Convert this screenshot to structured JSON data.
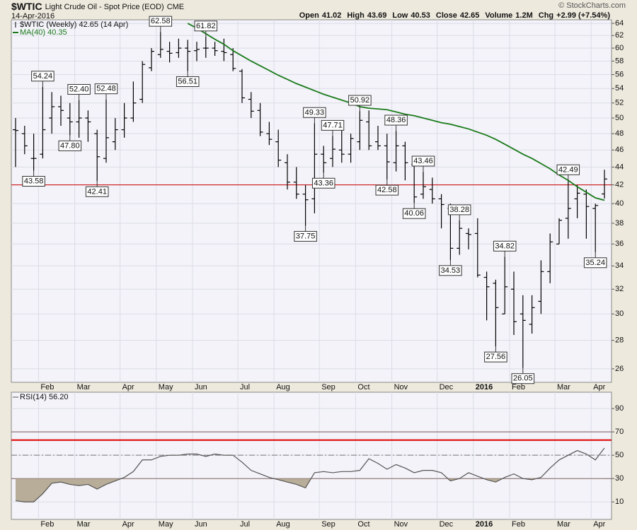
{
  "header": {
    "symbol": "$WTIC",
    "name": "Light Crude Oil - Spot Price (EOD)",
    "exchange": "CME",
    "date": "14-Apr-2016",
    "credit": "© StockCharts.com",
    "quote": [
      {
        "label": "Open",
        "value": "41.02"
      },
      {
        "label": "High",
        "value": "43.69"
      },
      {
        "label": "Low",
        "value": "40.53"
      },
      {
        "label": "Close",
        "value": "42.65"
      },
      {
        "label": "Volume",
        "value": "1.2M"
      },
      {
        "label": "Chg",
        "value": "+2.99 (+7.54%)"
      }
    ]
  },
  "chart_data": [
    {
      "type": "ohlc",
      "legend_label": "$WTIC (Weekly) 42.65 (14 Apr)",
      "log_scale": true,
      "grid": true,
      "bar_color": "#000000",
      "categories": [
        null,
        null,
        null,
        "Feb",
        null,
        null,
        null,
        "Mar",
        null,
        null,
        null,
        null,
        "Apr",
        null,
        null,
        null,
        "May",
        null,
        null,
        null,
        "Jun",
        null,
        null,
        null,
        null,
        "Jul",
        null,
        null,
        null,
        "Aug",
        null,
        null,
        null,
        null,
        "Sep",
        null,
        null,
        null,
        "Oct",
        null,
        null,
        null,
        "Nov",
        null,
        null,
        null,
        null,
        "Dec",
        null,
        null,
        null,
        "2016",
        null,
        null,
        null,
        "Feb",
        null,
        null,
        null,
        null,
        "Mar",
        null,
        null,
        null,
        "Apr",
        null
      ],
      "open": [
        48.5,
        48.0,
        45.0,
        45.5,
        50.0,
        51.5,
        50.0,
        49.5,
        50.0,
        48.0,
        45.0,
        47.0,
        48.5,
        50.0,
        52.5,
        57.0,
        59.0,
        59.5,
        59.3,
        60.0,
        59.6,
        60.0,
        60.0,
        59.5,
        59.0,
        56.5,
        52.5,
        51.0,
        48.0,
        47.0,
        44.5,
        42.3,
        41.0,
        40.5,
        45.5,
        45.0,
        46.0,
        45.5,
        47.0,
        49.5,
        47.0,
        46.5,
        44.5,
        46.5,
        44.3,
        41.0,
        41.5,
        40.5,
        39.5,
        35.6,
        37.0,
        37.0,
        33.0,
        32.5,
        30.0,
        32.0,
        30.0,
        29.2,
        31.0,
        33.5,
        36.0,
        38.5,
        40.5,
        41.0,
        39.5,
        41.02
      ],
      "high": [
        50.0,
        49.0,
        48.0,
        54.24,
        53.5,
        53.0,
        52.0,
        52.4,
        51.0,
        48.5,
        52.48,
        50.0,
        52.0,
        55.0,
        58.0,
        60.0,
        62.58,
        61.0,
        61.5,
        61.3,
        61.0,
        61.82,
        61.0,
        61.5,
        60.0,
        56.8,
        53.5,
        52.0,
        49.5,
        48.5,
        45.5,
        44.0,
        42.0,
        49.33,
        46.5,
        47.71,
        48.5,
        48.0,
        50.92,
        51.0,
        49.0,
        48.0,
        48.36,
        47.0,
        44.5,
        43.46,
        42.8,
        41.0,
        40.0,
        38.28,
        37.5,
        38.5,
        33.5,
        32.8,
        34.82,
        33.5,
        31.5,
        31.5,
        34.5,
        37.0,
        38.5,
        42.49,
        42.0,
        41.5,
        40.0,
        43.69
      ],
      "low": [
        44.0,
        45.5,
        43.58,
        45.0,
        48.0,
        49.0,
        47.8,
        47.5,
        47.0,
        42.41,
        44.5,
        46.0,
        47.5,
        49.5,
        52.0,
        56.5,
        58.5,
        57.8,
        58.5,
        56.51,
        58.0,
        58.5,
        58.8,
        58.0,
        56.5,
        52.0,
        50.0,
        47.7,
        46.6,
        44.0,
        41.5,
        40.5,
        37.75,
        39.0,
        43.36,
        44.0,
        44.5,
        44.5,
        46.0,
        46.0,
        46.0,
        42.58,
        43.5,
        42.5,
        40.06,
        40.5,
        40.0,
        37.5,
        34.53,
        35.0,
        35.5,
        33.0,
        29.5,
        27.56,
        30.0,
        28.4,
        26.05,
        28.5,
        30.0,
        32.5,
        36.0,
        36.5,
        38.5,
        36.5,
        35.24,
        40.53
      ],
      "close": [
        48.4,
        46.5,
        45.0,
        48.5,
        51.5,
        51.0,
        49.5,
        50.0,
        49.5,
        45.2,
        47.5,
        48.5,
        50.0,
        52.0,
        57.5,
        59.5,
        59.8,
        59.2,
        60.0,
        59.5,
        59.8,
        60.0,
        59.6,
        59.3,
        56.9,
        52.7,
        50.9,
        48.2,
        47.3,
        44.8,
        42.3,
        41.0,
        40.4,
        45.5,
        44.5,
        46.1,
        45.5,
        47.4,
        49.7,
        46.5,
        46.5,
        44.6,
        46.5,
        44.5,
        40.7,
        41.8,
        40.5,
        39.9,
        35.6,
        37.5,
        36.9,
        33.2,
        32.2,
        30.5,
        32.2,
        29.4,
        29.5,
        30.5,
        33.5,
        36.2,
        38.3,
        39.5,
        41.1,
        39.7,
        39.8,
        42.65
      ],
      "high_labels": [
        null,
        null,
        null,
        "54.24",
        null,
        null,
        null,
        "52.40",
        null,
        null,
        "52.48",
        null,
        null,
        null,
        null,
        null,
        "62.58",
        null,
        null,
        null,
        null,
        "61.82",
        null,
        null,
        null,
        null,
        null,
        null,
        null,
        null,
        null,
        null,
        null,
        "49.33",
        null,
        "47.71",
        null,
        null,
        "50.92",
        null,
        null,
        null,
        "48.36",
        null,
        null,
        "43.46",
        null,
        null,
        null,
        "38.28",
        null,
        null,
        null,
        null,
        "34.82",
        null,
        null,
        null,
        null,
        null,
        null,
        "42.49",
        null,
        null,
        null,
        null
      ],
      "low_labels": [
        null,
        null,
        "43.58",
        null,
        null,
        null,
        "47.80",
        null,
        null,
        "42.41",
        null,
        null,
        null,
        null,
        null,
        null,
        null,
        null,
        null,
        "56.51",
        null,
        null,
        null,
        null,
        null,
        null,
        null,
        null,
        null,
        null,
        null,
        null,
        "37.75",
        null,
        "43.36",
        null,
        null,
        null,
        null,
        null,
        null,
        "42.58",
        null,
        null,
        "40.06",
        null,
        null,
        null,
        "34.53",
        null,
        null,
        null,
        null,
        "27.56",
        null,
        null,
        "26.05",
        null,
        null,
        null,
        null,
        null,
        null,
        null,
        "35.24",
        null
      ],
      "series": [
        {
          "name": "MA(40) 40.35",
          "color": "#1a7a1a",
          "values": [
            null,
            null,
            null,
            null,
            null,
            null,
            null,
            null,
            null,
            null,
            null,
            null,
            null,
            null,
            null,
            null,
            null,
            null,
            null,
            64.0,
            63.2,
            62.3,
            61.4,
            60.6,
            59.6,
            58.8,
            58.0,
            57.3,
            56.6,
            55.9,
            55.3,
            54.7,
            54.2,
            53.7,
            53.2,
            52.8,
            52.4,
            52.0,
            51.5,
            51.3,
            51.2,
            51.1,
            50.8,
            50.5,
            50.3,
            50.0,
            49.7,
            49.4,
            49.2,
            48.9,
            48.6,
            48.2,
            47.8,
            47.3,
            46.7,
            46.1,
            45.5,
            45.0,
            44.4,
            43.8,
            43.1,
            42.5,
            41.8,
            41.2,
            40.6,
            40.35
          ]
        }
      ],
      "reference_lines": [
        {
          "value": 42,
          "color": "#cc0000"
        }
      ],
      "ylim": [
        25.1,
        64.6
      ],
      "yticks": [
        26,
        28,
        30,
        32,
        34,
        36,
        38,
        40,
        42,
        44,
        46,
        48,
        50,
        52,
        54,
        56,
        58,
        60,
        62,
        64
      ]
    },
    {
      "type": "line",
      "grid": true,
      "categories": [
        null,
        null,
        null,
        "Feb",
        null,
        null,
        null,
        "Mar",
        null,
        null,
        null,
        null,
        "Apr",
        null,
        null,
        null,
        "May",
        null,
        null,
        null,
        "Jun",
        null,
        null,
        null,
        null,
        "Jul",
        null,
        null,
        null,
        "Aug",
        null,
        null,
        null,
        null,
        "Sep",
        null,
        null,
        null,
        "Oct",
        null,
        null,
        null,
        "Nov",
        null,
        null,
        null,
        null,
        "Dec",
        null,
        null,
        null,
        "2016",
        null,
        null,
        null,
        "Feb",
        null,
        null,
        null,
        null,
        "Mar",
        null,
        null,
        null,
        "Apr",
        null
      ],
      "series": [
        {
          "name": "RSI(14) 56.20",
          "color": "#555555",
          "values": [
            11,
            10,
            10,
            17,
            26,
            27,
            25,
            24,
            25,
            21,
            25,
            28,
            31,
            36,
            46,
            46,
            49,
            50,
            50,
            51,
            51,
            49,
            51,
            50,
            50,
            44,
            37,
            34,
            31,
            29,
            27,
            25,
            22,
            35,
            36,
            35,
            36,
            36,
            37,
            47,
            43,
            38,
            42,
            39,
            35,
            37,
            37,
            35,
            28,
            30,
            35,
            32,
            29,
            27,
            31,
            34,
            30,
            29,
            31,
            39,
            46,
            50,
            54,
            51,
            46,
            56.2
          ]
        }
      ],
      "reference_lines": [
        {
          "value": 70,
          "color": "#7a5a5a"
        },
        {
          "value": 63,
          "color": "#dd0000"
        },
        {
          "value": 50,
          "color": "#777777",
          "dash": "8 3 2 3"
        },
        {
          "value": 30,
          "color": "#7a5a5a",
          "fill": "#b8ad98"
        }
      ],
      "ylim": [
        -5,
        104
      ],
      "yticks": [
        10,
        30,
        50,
        70,
        90
      ]
    }
  ]
}
